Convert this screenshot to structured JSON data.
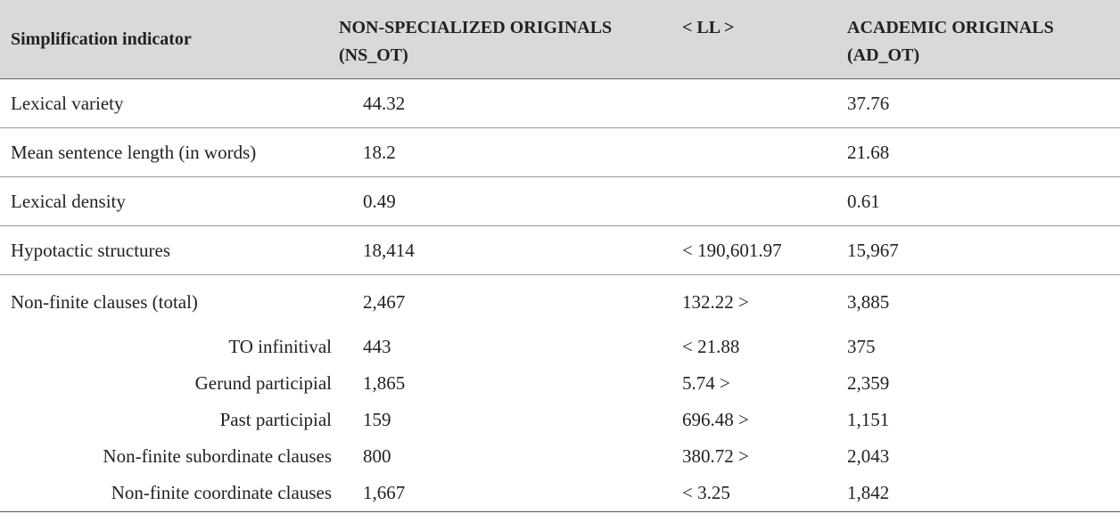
{
  "table": {
    "header": [
      "Simplification indicator",
      "NON-SPECIALIZED ORIGINALS (NS_OT)",
      "< LL >",
      "ACADEMIC ORIGINALS (AD_OT)"
    ],
    "rows": [
      [
        "Lexical variety",
        "44.32",
        null,
        "37.76"
      ],
      [
        "Mean sentence length (in words)",
        "18.2",
        null,
        "21.68"
      ],
      [
        "Lexical density",
        "0.49",
        null,
        "0.61"
      ],
      [
        "Hypotactic structures",
        "18,414",
        "< 190,601.97",
        "15,967"
      ],
      [
        "Non-finite clauses (total)",
        "2,467",
        "132.22 >",
        "3,885"
      ]
    ],
    "subrows": [
      [
        "TO infinitival",
        "443",
        "< 21.88",
        "375"
      ],
      [
        "Gerund participial",
        "1,865",
        "5.74 >",
        "2,359"
      ],
      [
        "Past participial",
        "159",
        "696.48 >",
        "1,151"
      ],
      [
        "Non-finite subordinate clauses",
        "800",
        "380.72 >",
        "2,043"
      ],
      [
        "Non-finite coordinate clauses",
        "1,667",
        "< 3.25",
        "1,842"
      ]
    ]
  }
}
